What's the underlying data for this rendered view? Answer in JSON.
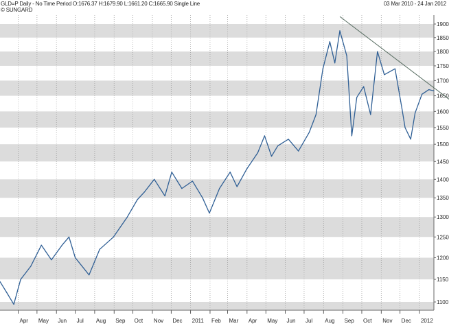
{
  "header": {
    "title": "GLD=P Daily -  No Time Period O:1676.37 H:1679.90 L:1661.20 C:1665.90 Single Line",
    "copyright": "© SUNGARD",
    "date_range": "03 Mar 2010  -  24 Jan 2012"
  },
  "chart_data": {
    "type": "line",
    "title": "",
    "xlabel": "",
    "ylabel": "",
    "y_scale": "log",
    "ylim": [
      1080,
      1930
    ],
    "y_ticks": [
      1100,
      1150,
      1200,
      1250,
      1300,
      1350,
      1400,
      1450,
      1500,
      1550,
      1600,
      1650,
      1700,
      1750,
      1800,
      1850,
      1900
    ],
    "x_range": [
      "2010-03-03",
      "2012-01-24"
    ],
    "x_ticks": [
      {
        "date": "2010-04-01",
        "label": "Apr"
      },
      {
        "date": "2010-05-01",
        "label": "May"
      },
      {
        "date": "2010-06-01",
        "label": "Jun"
      },
      {
        "date": "2010-07-01",
        "label": "Jul"
      },
      {
        "date": "2010-08-01",
        "label": "Aug"
      },
      {
        "date": "2010-09-01",
        "label": "Sep"
      },
      {
        "date": "2010-10-01",
        "label": "Oct"
      },
      {
        "date": "2010-11-01",
        "label": "Nov"
      },
      {
        "date": "2010-12-01",
        "label": "Dec"
      },
      {
        "date": "2011-01-01",
        "label": "2011"
      },
      {
        "date": "2011-02-01",
        "label": "Feb"
      },
      {
        "date": "2011-03-01",
        "label": "Mar"
      },
      {
        "date": "2011-04-01",
        "label": "Apr"
      },
      {
        "date": "2011-05-01",
        "label": "May"
      },
      {
        "date": "2011-06-01",
        "label": "Jun"
      },
      {
        "date": "2011-07-01",
        "label": "Jul"
      },
      {
        "date": "2011-08-01",
        "label": "Aug"
      },
      {
        "date": "2011-09-01",
        "label": "Sep"
      },
      {
        "date": "2011-10-01",
        "label": "Oct"
      },
      {
        "date": "2011-11-01",
        "label": "Nov"
      },
      {
        "date": "2011-12-01",
        "label": "Dec"
      },
      {
        "date": "2012-01-01",
        "label": "2012"
      }
    ],
    "grid": "alternating horizontal bands, dotted vertical month lines",
    "colors": {
      "line": "#2f5f95",
      "band": "#dcdcdc",
      "trendline": "#556b5f"
    },
    "series": [
      {
        "x": [
          "2010-03-03",
          "2010-03-14",
          "2010-03-25",
          "2010-04-05",
          "2010-04-21",
          "2010-05-08",
          "2010-05-24",
          "2010-06-10",
          "2010-06-21",
          "2010-07-01",
          "2010-07-23",
          "2010-08-09",
          "2010-08-31",
          "2010-09-22",
          "2010-10-08",
          "2010-10-19",
          "2010-11-04",
          "2010-11-21",
          "2010-12-02",
          "2010-12-18",
          "2011-01-04",
          "2011-01-20",
          "2011-01-31",
          "2011-02-16",
          "2011-03-05",
          "2011-03-16",
          "2011-04-01",
          "2011-04-18",
          "2011-04-29",
          "2011-05-10",
          "2011-05-20",
          "2011-06-06",
          "2011-06-22",
          "2011-07-09",
          "2011-07-20",
          "2011-07-31",
          "2011-08-11",
          "2011-08-19",
          "2011-08-27",
          "2011-09-07",
          "2011-09-15",
          "2011-09-23",
          "2011-10-04",
          "2011-10-15",
          "2011-10-26",
          "2011-11-06",
          "2011-11-23",
          "2011-12-04",
          "2011-12-09",
          "2011-12-18",
          "2011-12-25",
          "2012-01-05",
          "2012-01-16",
          "2012-01-24"
        ],
        "y": [
          1145,
          1120,
          1095,
          1150,
          1180,
          1230,
          1195,
          1230,
          1250,
          1200,
          1160,
          1220,
          1250,
          1300,
          1345,
          1365,
          1400,
          1355,
          1420,
          1375,
          1395,
          1350,
          1310,
          1375,
          1420,
          1380,
          1430,
          1475,
          1525,
          1465,
          1495,
          1515,
          1480,
          1535,
          1590,
          1740,
          1835,
          1760,
          1875,
          1785,
          1525,
          1645,
          1680,
          1590,
          1800,
          1720,
          1740,
          1610,
          1550,
          1515,
          1595,
          1655,
          1670,
          1666
        ]
      }
    ],
    "trendline": {
      "x": [
        "2011-08-27",
        "2012-01-24"
      ],
      "y": [
        1928,
        1650
      ]
    }
  }
}
